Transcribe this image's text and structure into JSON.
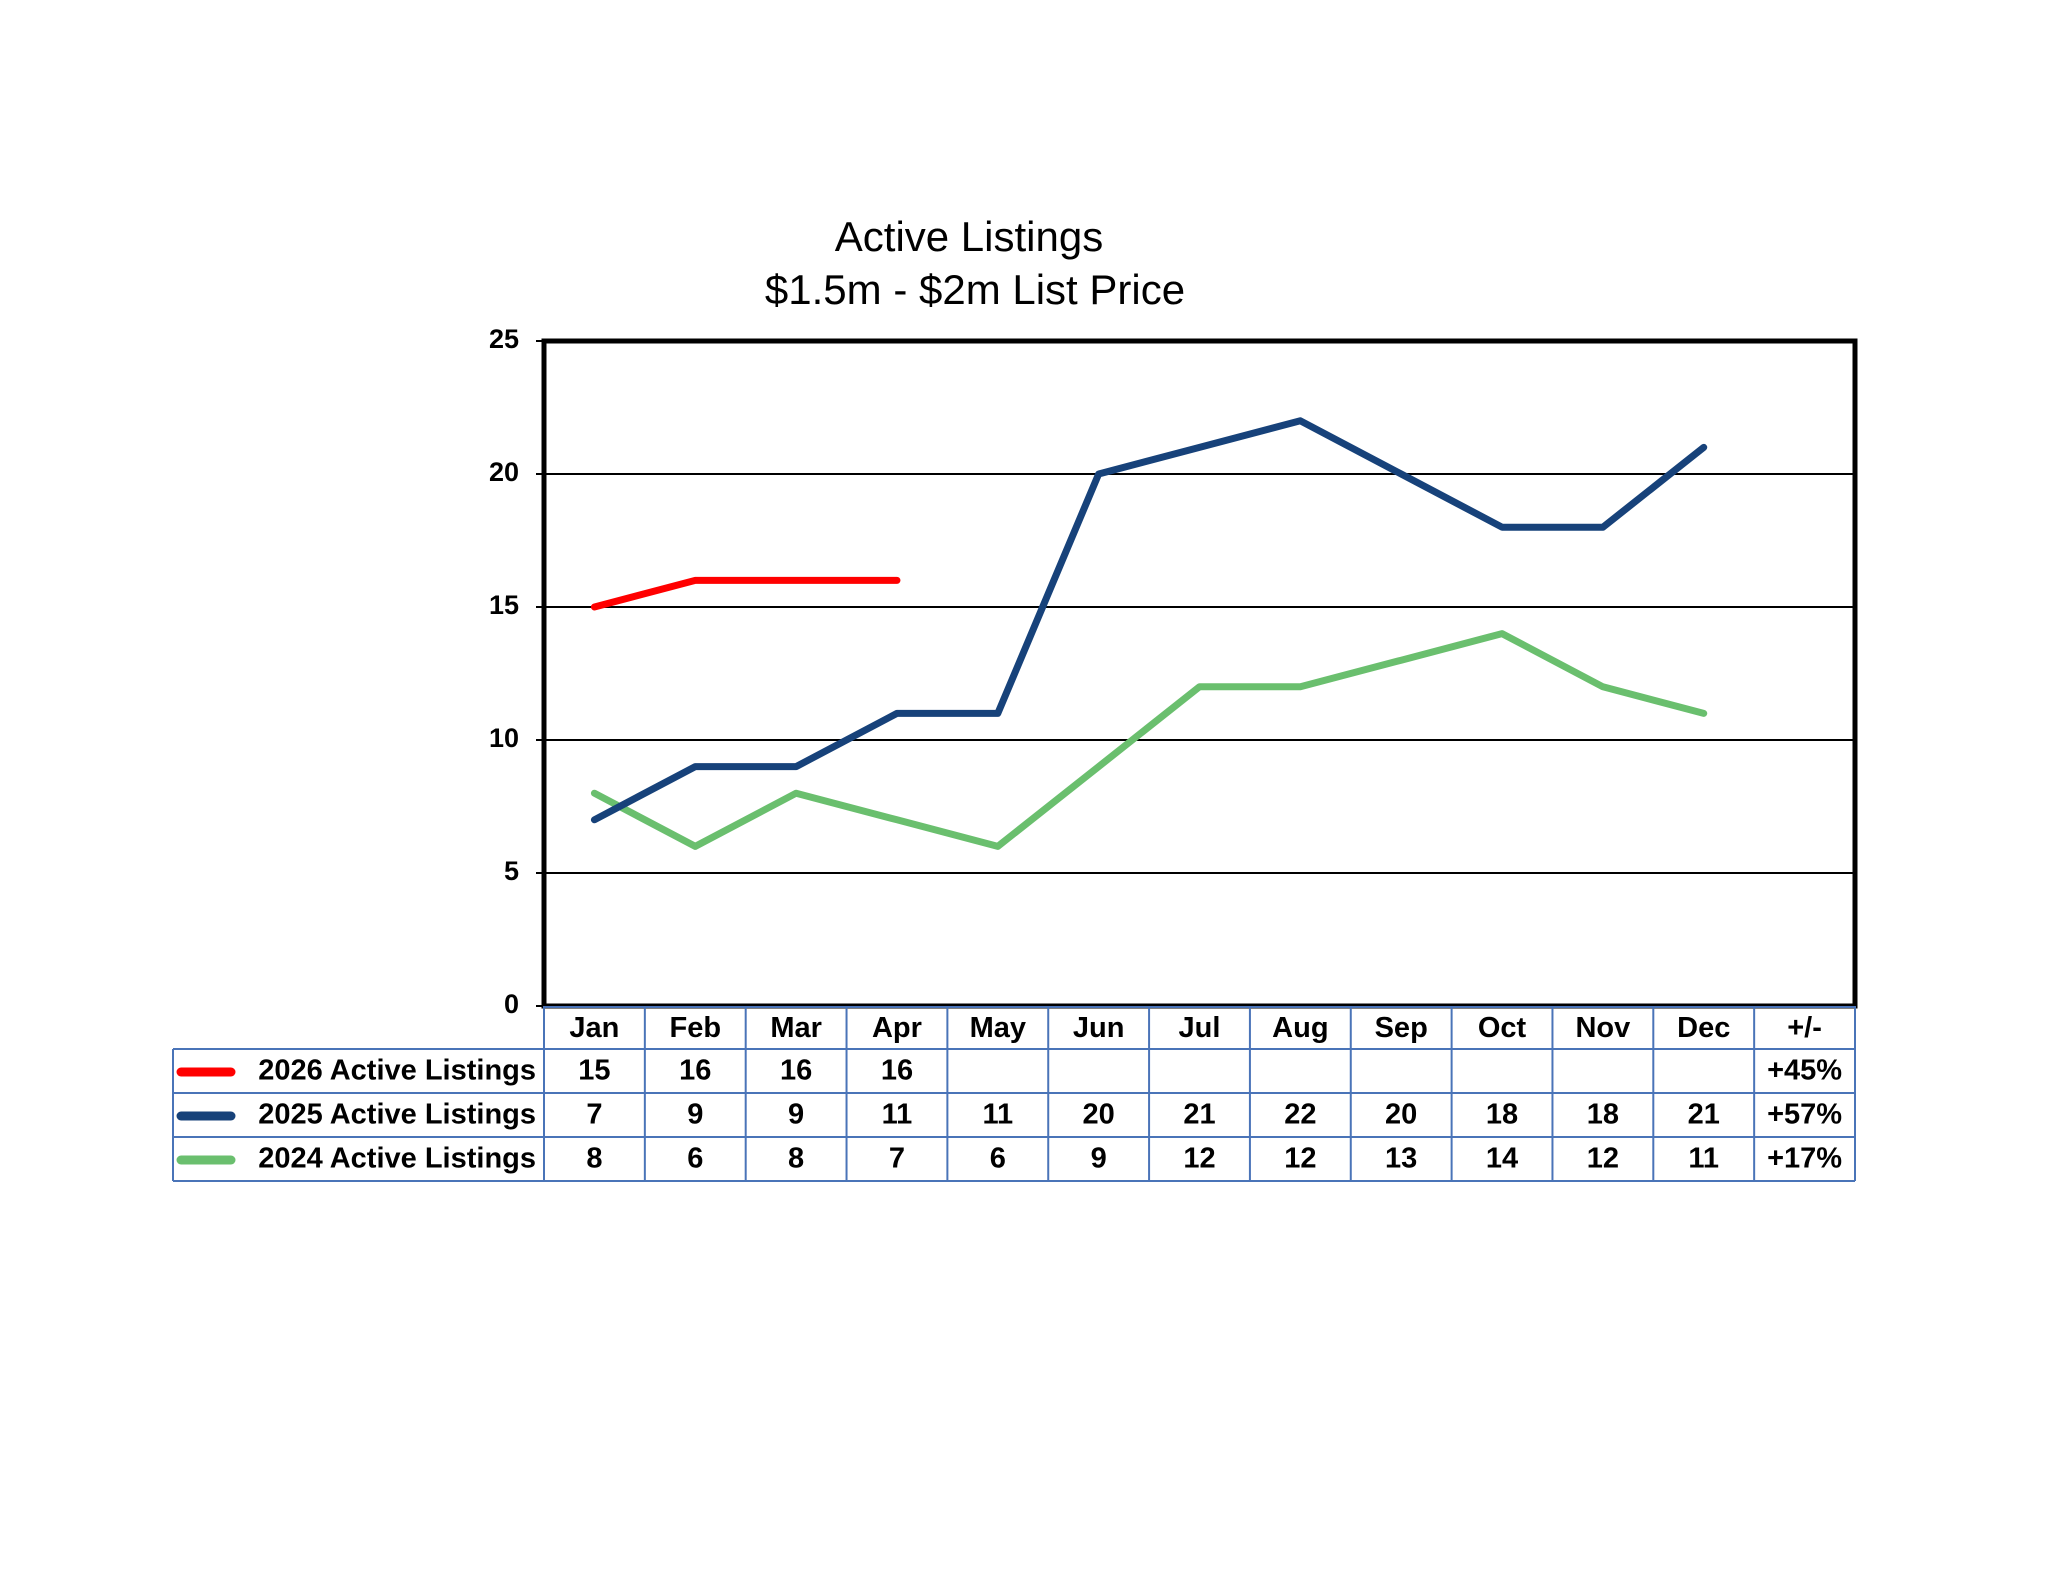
{
  "chart_data": {
    "type": "line",
    "title": "Active Listings",
    "subtitle": "$1.5m - $2m List Price",
    "categories": [
      "Jan",
      "Feb",
      "Mar",
      "Apr",
      "May",
      "Jun",
      "Jul",
      "Aug",
      "Sep",
      "Oct",
      "Nov",
      "Dec"
    ],
    "change_header": "+/-",
    "series": [
      {
        "name": "2026 Active Listings",
        "color": "#ff0000",
        "values": [
          15,
          16,
          16,
          16,
          null,
          null,
          null,
          null,
          null,
          null,
          null,
          null
        ],
        "change": "+45%"
      },
      {
        "name": "2025 Active Listings",
        "color": "#17427a",
        "values": [
          7,
          9,
          9,
          11,
          11,
          20,
          21,
          22,
          20,
          18,
          18,
          21
        ],
        "change": "+57%"
      },
      {
        "name": "2024 Active Listings",
        "color": "#6abf6e",
        "values": [
          8,
          6,
          8,
          7,
          6,
          9,
          12,
          12,
          13,
          14,
          12,
          11
        ],
        "change": "+17%"
      }
    ],
    "ylim": [
      0,
      25
    ],
    "yticks": [
      0,
      5,
      10,
      15,
      20,
      25
    ],
    "grid": true
  }
}
